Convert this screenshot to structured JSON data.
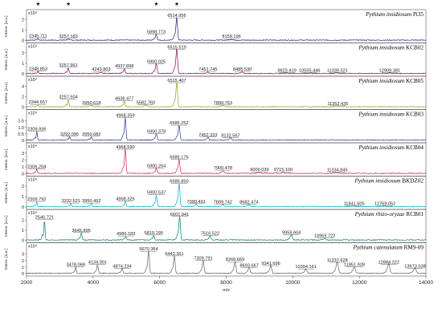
{
  "chart_data": {
    "type": "line",
    "x_axis": {
      "label": "m/z",
      "range": [
        2000,
        14000
      ],
      "ticks": [
        "2000",
        "4000",
        "6000",
        "8000",
        "10000",
        "12000",
        "14000"
      ]
    },
    "y_axis_label": "Intens. [a.u.]",
    "y_exponent": "x10⁴",
    "asterisks": [
      "*",
      "*",
      "*",
      "*"
    ],
    "asterisk_mz": [
      2345,
      3258,
      5898,
      6515
    ],
    "panels": [
      {
        "species": "Pythium insidiosum",
        "strain": "Pi35",
        "color": "#1a237e",
        "yticks": [
          "0",
          "1",
          "2"
        ],
        "ymax": 2.5,
        "peaks": [
          {
            "mz": 2345.711,
            "h": 0.15,
            "label": "2345.711"
          },
          {
            "mz": 3257.183,
            "h": 0.12,
            "label": "3257.183"
          },
          {
            "mz": 5898.773,
            "h": 0.55,
            "label": "5898.773"
          },
          {
            "mz": 6514.956,
            "h": 2.1,
            "label": "6514.956"
          },
          {
            "mz": 8159.196,
            "h": 0.1,
            "label": "8159.196"
          }
        ]
      },
      {
        "species": "Pythium insidiosum",
        "strain": "KCB02",
        "color": "#880e4f",
        "yticks": [
          "0",
          "1",
          "2"
        ],
        "ymax": 2.5,
        "peaks": [
          {
            "mz": 2348.853,
            "h": 0.2,
            "label": "2348.853"
          },
          {
            "mz": 3257.961,
            "h": 0.55,
            "label": "3257.961"
          },
          {
            "mz": 4243.803,
            "h": 0.15,
            "label": "4243.803"
          },
          {
            "mz": 4937.898,
            "h": 0.45,
            "label": "4937.898"
          },
          {
            "mz": 5900.025,
            "h": 0.9,
            "label": "5900.025"
          },
          {
            "mz": 6515.519,
            "h": 2.3,
            "label": "6515.519"
          },
          {
            "mz": 7451.745,
            "h": 0.15,
            "label": "7451.745"
          },
          {
            "mz": 8485.53,
            "h": 0.15,
            "label": "8485.530"
          },
          {
            "mz": 9823.419,
            "h": 0.05,
            "label": "9823.419"
          },
          {
            "mz": 10505.446,
            "h": 0.05,
            "label": "10505.446"
          },
          {
            "mz": 11339.521,
            "h": 0.05,
            "label": "11339.521"
          },
          {
            "mz": 12909.381,
            "h": 0.05,
            "label": "12909.381"
          }
        ]
      },
      {
        "species": "Pythium insidiosum",
        "strain": "KCB05",
        "color": "#9e9d24",
        "yticks": [
          "0",
          "2",
          "4"
        ],
        "ymax": 5,
        "peaks": [
          {
            "mz": 2344.657,
            "h": 0.35,
            "label": "2344.657"
          },
          {
            "mz": 3257.504,
            "h": 1.4,
            "label": "3257.504"
          },
          {
            "mz": 3950.618,
            "h": 0.25,
            "label": "3950.618"
          },
          {
            "mz": 4938.477,
            "h": 1.1,
            "label": "4938.477"
          },
          {
            "mz": 5582.76,
            "h": 0.3,
            "label": "5582.760"
          },
          {
            "mz": 6515.407,
            "h": 4.6,
            "label": "6515.407"
          },
          {
            "mz": 7899.763,
            "h": 0.25,
            "label": "7899.763"
          },
          {
            "mz": 11352.435,
            "h": 0.1,
            "label": "11352.435"
          }
        ]
      },
      {
        "species": "Pythium insidiosum",
        "strain": "KCB03",
        "color": "#283593",
        "yticks": [
          "0",
          "0.5",
          "1.0",
          "1.5"
        ],
        "ymax": 2.0,
        "peaks": [
          {
            "mz": 2309.936,
            "h": 0.65,
            "label": "2309.936"
          },
          {
            "mz": 3292.095,
            "h": 0.25,
            "label": "3292.095"
          },
          {
            "mz": 3950.682,
            "h": 0.25,
            "label": "3950.682"
          },
          {
            "mz": 4968.359,
            "h": 1.7,
            "label": "4968.359"
          },
          {
            "mz": 5900.378,
            "h": 0.45,
            "label": "5900.378"
          },
          {
            "mz": 6585.252,
            "h": 1.1,
            "label": "6585.252"
          },
          {
            "mz": 7452.333,
            "h": 0.2,
            "label": "7452.333"
          },
          {
            "mz": 8132.567,
            "h": 0.15,
            "label": "8132.567"
          }
        ]
      },
      {
        "species": "Pythium insidiosum",
        "strain": "KCB04",
        "color": "#d81b60",
        "yticks": [
          "0",
          "1",
          "2",
          "3"
        ],
        "ymax": 3.8,
        "peaks": [
          {
            "mz": 2306.258,
            "h": 0.6,
            "label": "2306.258"
          },
          {
            "mz": 4968.59,
            "h": 3.5,
            "label": "4968.590"
          },
          {
            "mz": 5900.204,
            "h": 0.7,
            "label": "5900.204"
          },
          {
            "mz": 6585.176,
            "h": 2.0,
            "label": "6585.176"
          },
          {
            "mz": 7900.478,
            "h": 0.4,
            "label": "7900.478"
          },
          {
            "mz": 9000.039,
            "h": 0.15,
            "label": "9000.039"
          },
          {
            "mz": 9715.1,
            "h": 0.15,
            "label": "9715.100"
          },
          {
            "mz": 11334.845,
            "h": 0.1,
            "label": "11334.845"
          }
        ]
      },
      {
        "species": "Pythium insidiosum",
        "strain": "BKDZ02",
        "color": "#00acc1",
        "yticks": [
          "0",
          "1",
          "2"
        ],
        "ymax": 2.5,
        "peaks": [
          {
            "mz": 2309.792,
            "h": 0.45,
            "label": "2309.792"
          },
          {
            "mz": 3332.521,
            "h": 0.3,
            "label": "3332.521"
          },
          {
            "mz": 3950.492,
            "h": 0.3,
            "label": "3950.492"
          },
          {
            "mz": 4968.326,
            "h": 0.5,
            "label": "4968.326"
          },
          {
            "mz": 5900.537,
            "h": 1.1,
            "label": "5900.537"
          },
          {
            "mz": 6586.85,
            "h": 2.2,
            "label": "6586.850"
          },
          {
            "mz": 7099.491,
            "h": 0.25,
            "label": "7099.491"
          },
          {
            "mz": 7899.742,
            "h": 0.2,
            "label": "7899.742"
          },
          {
            "mz": 8682.474,
            "h": 0.2,
            "label": "8682.474"
          },
          {
            "mz": 11841.605,
            "h": 0.05,
            "label": "11841.605"
          },
          {
            "mz": 12769.052,
            "h": 0.05,
            "label": "12769.052"
          }
        ]
      },
      {
        "species": "Pythium rhizo-oryzae",
        "strain": "RCB01",
        "color": "#00796b",
        "yticks": [
          "0",
          "1",
          "2"
        ],
        "ymax": 2.6,
        "peaks": [
          {
            "mz": 2540.721,
            "h": 2.0,
            "label": "2540.721"
          },
          {
            "mz": 3645.895,
            "h": 0.7,
            "label": "3645.895"
          },
          {
            "mz": 4986.183,
            "h": 0.35,
            "label": "4986.183"
          },
          {
            "mz": 5819.195,
            "h": 0.45,
            "label": "5819.195"
          },
          {
            "mz": 6601.941,
            "h": 2.3,
            "label": "6601.941"
          },
          {
            "mz": 7516.522,
            "h": 0.4,
            "label": "7516.522"
          },
          {
            "mz": 9959.604,
            "h": 0.5,
            "label": "9959.604"
          },
          {
            "mz": 10959.722,
            "h": 0.15,
            "label": "10959.722"
          }
        ]
      },
      {
        "species": "Pythium catenulatum",
        "strain": "RM9-09",
        "color": "#616161",
        "yticks": [
          "0",
          "1",
          "2",
          "3"
        ],
        "ymax": 4,
        "peaks": [
          {
            "mz": 3478.068,
            "h": 0.9,
            "label": "3478.068"
          },
          {
            "mz": 4134.001,
            "h": 1.3,
            "label": "4134.001"
          },
          {
            "mz": 4874.234,
            "h": 0.7,
            "label": "4874.234"
          },
          {
            "mz": 5670.364,
            "h": 3.3,
            "label": "5670.364"
          },
          {
            "mz": 6442.361,
            "h": 2.6,
            "label": "6442.361"
          },
          {
            "mz": 7309.791,
            "h": 1.9,
            "label": "7309.791"
          },
          {
            "mz": 8266.669,
            "h": 1.7,
            "label": "8266.669"
          },
          {
            "mz": 8693.667,
            "h": 0.8,
            "label": "8693.667"
          },
          {
            "mz": 9341.696,
            "h": 1.1,
            "label": "9341.696"
          },
          {
            "mz": 10394.161,
            "h": 0.6,
            "label": "10394.161"
          },
          {
            "mz": 11337.628,
            "h": 1.6,
            "label": "11337.628"
          },
          {
            "mz": 11851.928,
            "h": 0.9,
            "label": "11851.928"
          },
          {
            "mz": 12884.322,
            "h": 1.3,
            "label": "12884.322"
          },
          {
            "mz": 13673.538,
            "h": 0.7,
            "label": "13673.538"
          }
        ]
      }
    ]
  }
}
